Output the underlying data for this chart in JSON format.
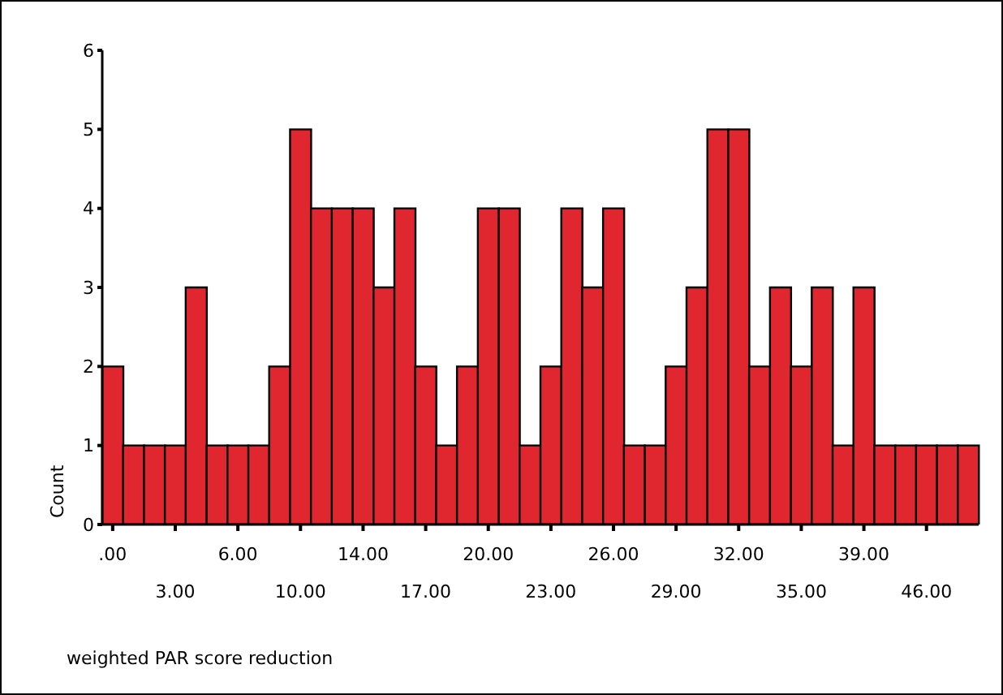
{
  "chart_data": {
    "type": "bar",
    "xlabel": "weighted PAR score reduction",
    "ylabel": "Count",
    "categories": [
      ".00",
      null,
      null,
      "3.00",
      null,
      null,
      "6.00",
      null,
      null,
      "10.00",
      null,
      null,
      "14.00",
      null,
      null,
      "17.00",
      null,
      null,
      "20.00",
      null,
      null,
      "23.00",
      null,
      null,
      "26.00",
      null,
      null,
      "29.00",
      null,
      null,
      "32.00",
      null,
      null,
      "35.00",
      null,
      null,
      "39.00",
      null,
      null,
      "46.00",
      null,
      null
    ],
    "values": [
      2,
      1,
      1,
      1,
      3,
      1,
      1,
      1,
      2,
      5,
      4,
      4,
      4,
      3,
      4,
      2,
      1,
      2,
      4,
      4,
      1,
      2,
      4,
      3,
      4,
      1,
      1,
      2,
      3,
      5,
      5,
      2,
      3,
      2,
      3,
      1,
      3,
      1,
      1,
      1,
      1,
      1
    ],
    "color": "#e0262f",
    "ylim": [
      0,
      6
    ],
    "yticks": [
      0,
      1,
      2,
      3,
      4,
      5,
      6
    ],
    "grid": false
  }
}
